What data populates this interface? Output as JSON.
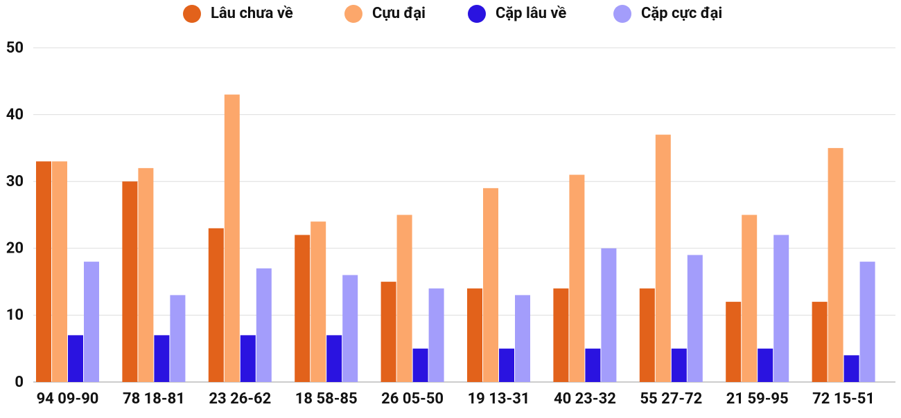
{
  "chart_data": {
    "type": "bar",
    "categories": [
      "94 09-90",
      "78 18-81",
      "23 26-62",
      "18 58-85",
      "26 05-50",
      "19 13-31",
      "40 23-32",
      "55 27-72",
      "21 59-95",
      "72 15-51"
    ],
    "series": [
      {
        "name": "Lâu chưa về",
        "color": "#e2621b",
        "values": [
          33,
          30,
          23,
          22,
          15,
          14,
          14,
          14,
          12,
          12
        ]
      },
      {
        "name": "Cựu đại",
        "color": "#fca76b",
        "values": [
          33,
          32,
          43,
          24,
          25,
          29,
          31,
          37,
          25,
          35
        ]
      },
      {
        "name": "Cặp lâu về",
        "color": "#2a13e0",
        "values": [
          7,
          7,
          7,
          7,
          5,
          5,
          5,
          5,
          5,
          4
        ]
      },
      {
        "name": "Cặp cực đại",
        "color": "#a39dfb",
        "values": [
          18,
          13,
          17,
          16,
          14,
          13,
          20,
          19,
          22,
          18
        ]
      }
    ],
    "ylim": [
      0,
      50
    ],
    "yticks": [
      0,
      10,
      20,
      30,
      40,
      50
    ],
    "grid": true,
    "legend": "top"
  }
}
